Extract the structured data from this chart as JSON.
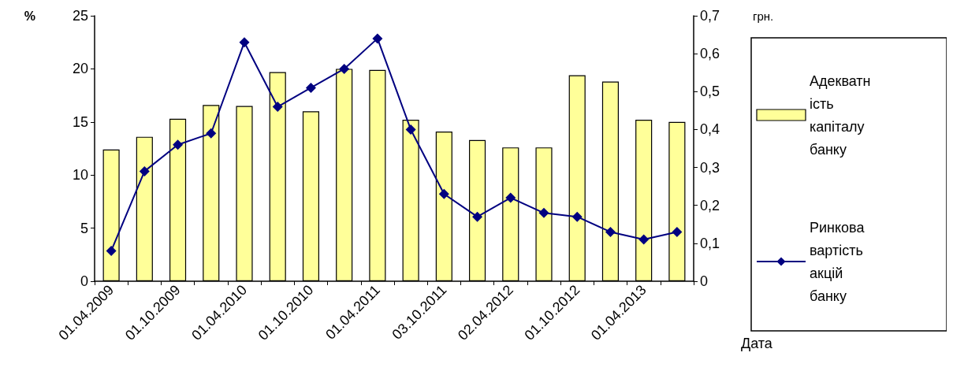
{
  "chart_data": {
    "type": "bar",
    "xlabel": "Дата",
    "ylabel": "%",
    "y2label": "грн.",
    "categories": [
      "01.04.2009",
      null,
      "01.10.2009",
      null,
      "01.04.2010",
      null,
      "01.10.2010",
      null,
      "01.04.2011",
      null,
      "03.10.2011",
      null,
      "02.04.2012",
      null,
      "01.10.2012",
      null,
      "01.04.2013",
      null
    ],
    "series": [
      {
        "name": "Адекватність капіталу банку",
        "color": "#ffff99",
        "values": [
          12.4,
          13.6,
          15.3,
          16.6,
          16.5,
          19.7,
          16.0,
          20.0,
          19.9,
          15.2,
          14.1,
          13.3,
          12.6,
          12.6,
          19.4,
          18.8,
          15.2,
          15.0
        ]
      },
      {
        "name": "Ринкова вартість акцій банку",
        "type": "line",
        "axis": "y2",
        "color": "#000080",
        "marker": "diamond",
        "values": [
          0.08,
          0.29,
          0.36,
          0.39,
          0.63,
          0.46,
          0.51,
          0.56,
          0.64,
          0.4,
          0.23,
          0.17,
          0.22,
          0.18,
          0.17,
          0.13,
          0.11,
          0.13
        ]
      }
    ],
    "ylim": [
      0,
      25
    ],
    "yticks": [
      0,
      5,
      10,
      15,
      20,
      25
    ],
    "y2lim": [
      0,
      0.7
    ],
    "y2ticks": [
      0,
      {
        "value": 0.1,
        "label": "0,1"
      },
      {
        "value": 0.2,
        "label": "0,2"
      },
      {
        "value": 0.3,
        "label": "0,3"
      },
      {
        "value": 0.4,
        "label": "0,4"
      },
      {
        "value": 0.5,
        "label": "0,5"
      },
      {
        "value": 0.6,
        "label": "0,6"
      },
      {
        "value": 0.7,
        "label": "0,7"
      }
    ],
    "grid": false,
    "legend": "right"
  }
}
